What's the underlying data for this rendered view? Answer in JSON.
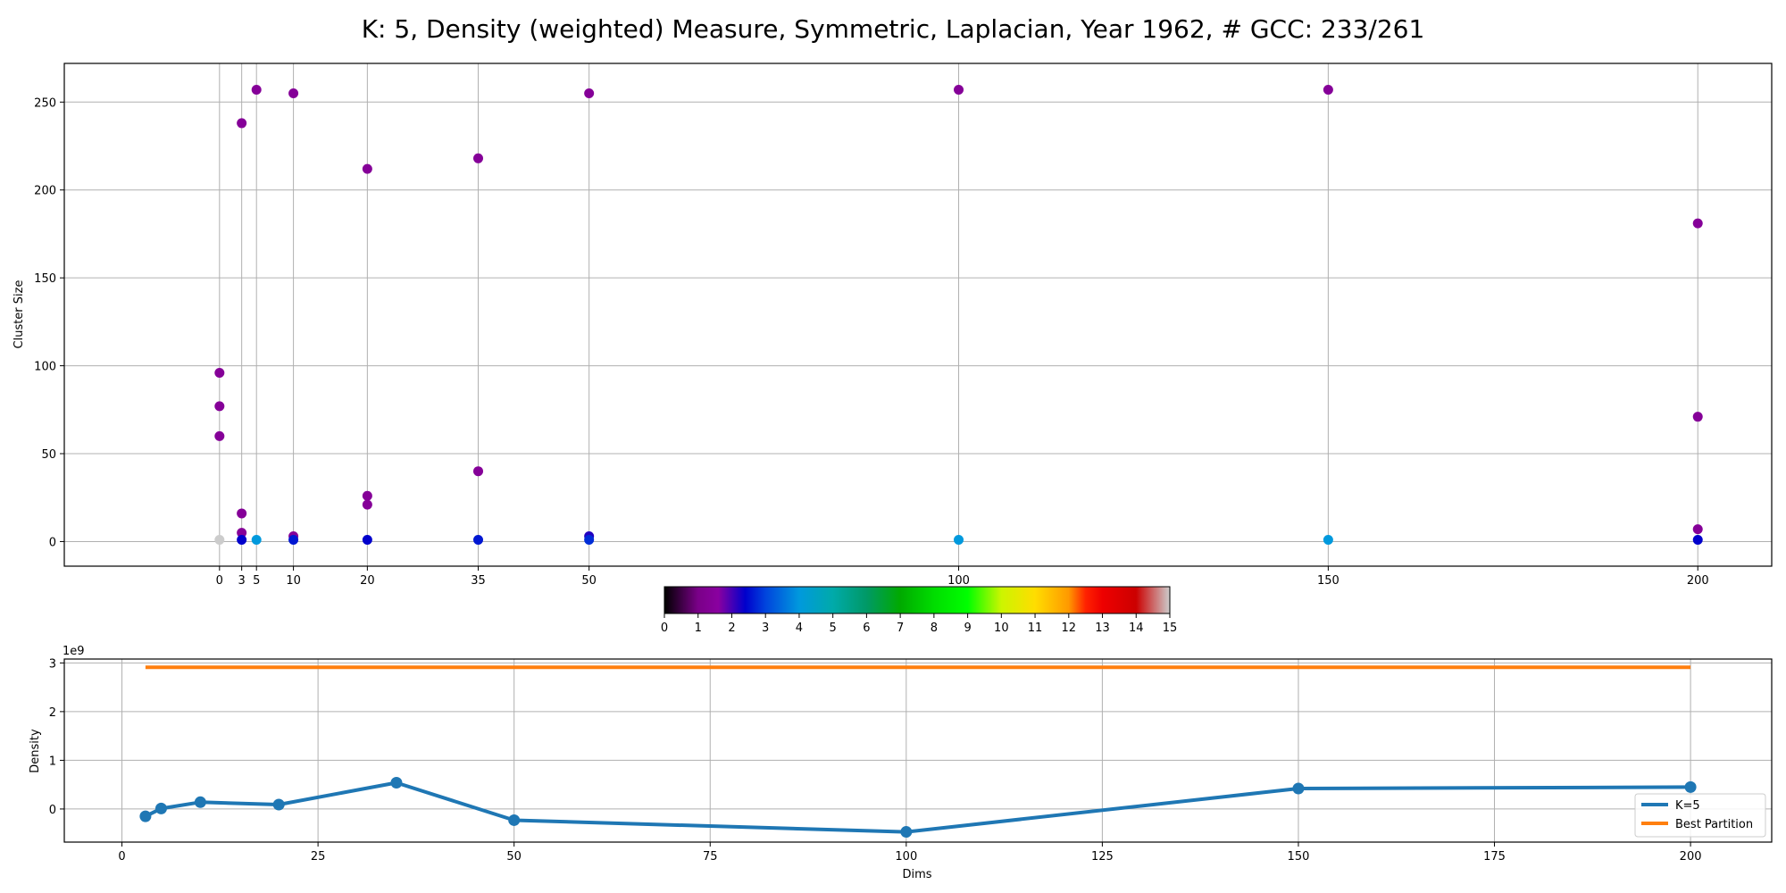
{
  "figure_title": "K: 5, Density (weighted) Measure, Symmetric, Laplacian, Year 1962, # GCC: 233/261",
  "chart_data": [
    {
      "type": "scatter",
      "name": "cluster-sizes",
      "xlabel": "",
      "ylabel": "Cluster Size",
      "xlim": [
        -21,
        210
      ],
      "ylim": [
        -14,
        272
      ],
      "xticks": [
        0,
        3,
        5,
        10,
        20,
        35,
        50,
        100,
        150,
        200
      ],
      "yticks": [
        0,
        50,
        100,
        150,
        200,
        250
      ],
      "grid": true,
      "color_scale": "nipy_spectral",
      "points": [
        {
          "x": 0,
          "y": 96,
          "c": 1.4
        },
        {
          "x": 0,
          "y": 77,
          "c": 1.4
        },
        {
          "x": 0,
          "y": 60,
          "c": 1.4
        },
        {
          "x": 0,
          "y": 1,
          "c": 15
        },
        {
          "x": 3,
          "y": 238,
          "c": 1.4
        },
        {
          "x": 3,
          "y": 16,
          "c": 1.4
        },
        {
          "x": 3,
          "y": 5,
          "c": 1.4
        },
        {
          "x": 3,
          "y": 1,
          "c": 2.4
        },
        {
          "x": 5,
          "y": 257,
          "c": 1.4
        },
        {
          "x": 5,
          "y": 1,
          "c": 4
        },
        {
          "x": 10,
          "y": 255,
          "c": 1.4
        },
        {
          "x": 10,
          "y": 3,
          "c": 1.4
        },
        {
          "x": 10,
          "y": 1,
          "c": 2.6
        },
        {
          "x": 20,
          "y": 212,
          "c": 1.4
        },
        {
          "x": 20,
          "y": 26,
          "c": 1.4
        },
        {
          "x": 20,
          "y": 21,
          "c": 1.4
        },
        {
          "x": 20,
          "y": 1,
          "c": 2.4
        },
        {
          "x": 35,
          "y": 218,
          "c": 1.4
        },
        {
          "x": 35,
          "y": 40,
          "c": 1.4
        },
        {
          "x": 35,
          "y": 1,
          "c": 2.6
        },
        {
          "x": 50,
          "y": 255,
          "c": 1.4
        },
        {
          "x": 50,
          "y": 3,
          "c": 2.2
        },
        {
          "x": 50,
          "y": 1,
          "c": 2.8
        },
        {
          "x": 100,
          "y": 257,
          "c": 1.4
        },
        {
          "x": 100,
          "y": 1,
          "c": 4
        },
        {
          "x": 150,
          "y": 257,
          "c": 1.4
        },
        {
          "x": 150,
          "y": 1,
          "c": 4
        },
        {
          "x": 200,
          "y": 181,
          "c": 1.4
        },
        {
          "x": 200,
          "y": 71,
          "c": 1.4
        },
        {
          "x": 200,
          "y": 7,
          "c": 1.4
        },
        {
          "x": 200,
          "y": 1,
          "c": 2.4
        }
      ]
    },
    {
      "type": "colorbar",
      "name": "colorbar",
      "range": [
        0,
        15
      ],
      "ticks": [
        0,
        1,
        2,
        3,
        4,
        5,
        6,
        7,
        8,
        9,
        10,
        11,
        12,
        13,
        14,
        15
      ],
      "color_stops": [
        {
          "v": 0,
          "color": "#000000"
        },
        {
          "v": 1,
          "color": "#7a0088"
        },
        {
          "v": 1.6,
          "color": "#8a00a0"
        },
        {
          "v": 2.4,
          "color": "#0000cc"
        },
        {
          "v": 3,
          "color": "#0044dd"
        },
        {
          "v": 4,
          "color": "#0099dd"
        },
        {
          "v": 5,
          "color": "#00aaaa"
        },
        {
          "v": 6,
          "color": "#009966"
        },
        {
          "v": 7,
          "color": "#00aa00"
        },
        {
          "v": 8,
          "color": "#00dd00"
        },
        {
          "v": 9,
          "color": "#00ff00"
        },
        {
          "v": 10,
          "color": "#ccf500"
        },
        {
          "v": 11,
          "color": "#ffdd00"
        },
        {
          "v": 12,
          "color": "#ff9900"
        },
        {
          "v": 12.5,
          "color": "#ff2200"
        },
        {
          "v": 13,
          "color": "#ee0000"
        },
        {
          "v": 14,
          "color": "#cc0000"
        },
        {
          "v": 14.5,
          "color": "#cc6666"
        },
        {
          "v": 15,
          "color": "#cccccc"
        }
      ]
    },
    {
      "type": "line",
      "name": "density",
      "xlabel": "Dims",
      "ylabel": "Density",
      "offset_label": "1e9",
      "xlim": [
        -7.35,
        210.35
      ],
      "ylim": [
        -0.68,
        3.08
      ],
      "xticks": [
        0,
        25,
        50,
        75,
        100,
        125,
        150,
        175,
        200
      ],
      "yticks": [
        0,
        1,
        2,
        3
      ],
      "grid": true,
      "legend_position": "lower right",
      "series": [
        {
          "name": "K=5",
          "color": "#1f77b4",
          "markers": true,
          "x": [
            3,
            5,
            10,
            20,
            35,
            50,
            100,
            150,
            200
          ],
          "y": [
            -0.15,
            0.01,
            0.14,
            0.09,
            0.54,
            -0.23,
            -0.47,
            0.42,
            0.45
          ]
        },
        {
          "name": "Best Partition",
          "color": "#ff7f0e",
          "markers": false,
          "x": [
            3,
            200
          ],
          "y": [
            2.91,
            2.91
          ]
        }
      ]
    }
  ]
}
